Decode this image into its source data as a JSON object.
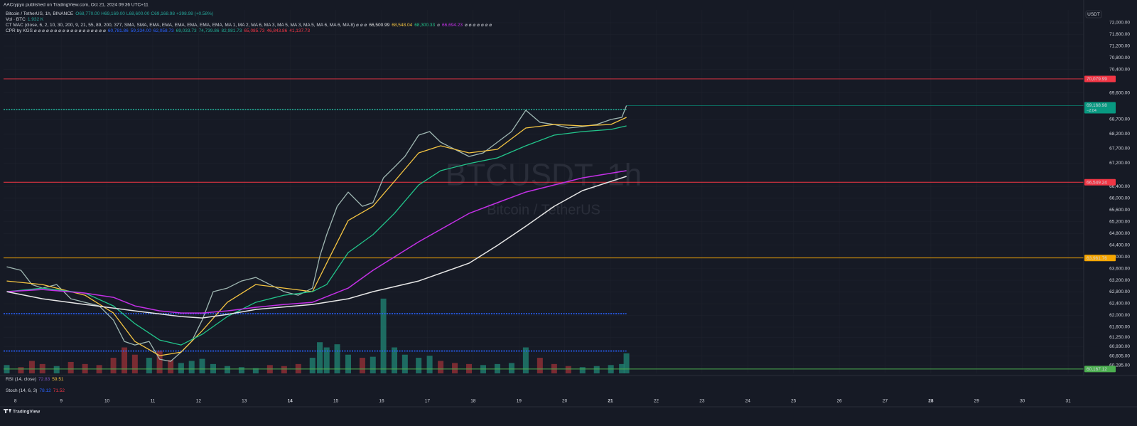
{
  "page": {
    "published": "AACrypyo published on TradingView.com, Oct 21, 2024 09:36 UTC+11",
    "symbol": "Bitcoin / TetherUS, 1h, BINANCE",
    "open": "O68,770.00",
    "high": "H69,169.00",
    "low": "L68,600.00",
    "close": "C69,168.98",
    "change": "+398.98 (+0.58%)",
    "vol_label": "Vol · BTC",
    "vol_value": "1.932 K",
    "mac_label": "CT MAC (close, 6, 2, 10, 30, 200, 9, 21, 55, 89, 200, 377, SMA, SMA, EMA, EMA, EMA, EMA, EMA, EMA, MA 1, MA 2, MA 6, MA 3, MA 5, MA 3, MA 5, MA 6, MA 6, MA 8) ⌀ ⌀ ⌀",
    "mac_values": [
      {
        "text": "66,500.99",
        "color": "#e6e6e6"
      },
      {
        "text": "68,548.04",
        "color": "#f5c542"
      },
      {
        "text": "68,300.33",
        "color": "#22c58b"
      },
      {
        "text": "⌀",
        "color": "#b2b5be"
      },
      {
        "text": "66,694.23",
        "color": "#c330e6"
      }
    ],
    "mac_tail": "⌀ ⌀ ⌀ ⌀ ⌀ ⌀ ⌀",
    "cpr_label": "CPR by KGS ⌀ ⌀ ⌀ ⌀ ⌀ ⌀ ⌀ ⌀ ⌀ ⌀ ⌀ ⌀ ⌀ ⌀ ⌀ ⌀ ⌀ ⌀",
    "cpr_values": [
      {
        "text": "60,781.86",
        "color": "#2962ff"
      },
      {
        "text": "59,334.00",
        "color": "#2962ff"
      },
      {
        "text": "62,058.73",
        "color": "#2962ff"
      },
      {
        "text": "69,033.73",
        "color": "#22ab94"
      },
      {
        "text": "74,739.86",
        "color": "#22ab94"
      },
      {
        "text": "82,981.73",
        "color": "#22ab94"
      },
      {
        "text": "65,085.73",
        "color": "#f23645"
      },
      {
        "text": "46,843.86",
        "color": "#f23645"
      },
      {
        "text": "41,137.73",
        "color": "#f23645"
      }
    ],
    "watermark": "BTCUSDT, 1h",
    "watermark_sub": "Bitcoin / TetherUS",
    "currency": "USDT",
    "rsi_label": "RSI (14, close)",
    "rsi_values": [
      {
        "text": "72.83",
        "color": "#7e57c2"
      },
      {
        "text": "59.51",
        "color": "#f5c542"
      }
    ],
    "stoch_label": "Stoch (14, 6, 3)",
    "stoch_values": [
      {
        "text": "78.12",
        "color": "#2962ff"
      },
      {
        "text": "71.52",
        "color": "#f23645"
      }
    ],
    "brand": "TradingView"
  },
  "chart_data": {
    "type": "line",
    "xlim": [
      7.74,
      31.34
    ],
    "xticks": [
      8,
      9,
      10,
      11,
      12,
      13,
      14,
      15,
      16,
      17,
      18,
      19,
      20,
      21,
      22,
      23,
      24,
      25,
      26,
      27,
      28,
      29,
      30,
      31
    ],
    "xticks_bold": [
      14,
      21,
      28
    ],
    "ylim": [
      60018,
      72437
    ],
    "yticks": [
      {
        "value": 72000,
        "label": "72,000.00"
      },
      {
        "value": 71600,
        "label": "71,600.00"
      },
      {
        "value": 71200,
        "label": "71,200.00"
      },
      {
        "value": 70800,
        "label": "70,800.00"
      },
      {
        "value": 70400,
        "label": "70,400.00"
      },
      {
        "value": 69600,
        "label": "69,600.00"
      },
      {
        "value": 68700,
        "label": "68,700.00"
      },
      {
        "value": 68200,
        "label": "68,200.00"
      },
      {
        "value": 67700,
        "label": "67,700.00"
      },
      {
        "value": 67200,
        "label": "67,200.00"
      },
      {
        "value": 66400,
        "label": "66,400.00"
      },
      {
        "value": 66000,
        "label": "66,000.00"
      },
      {
        "value": 65600,
        "label": "65,600.00"
      },
      {
        "value": 65200,
        "label": "65,200.00"
      },
      {
        "value": 64800,
        "label": "64,800.00"
      },
      {
        "value": 64400,
        "label": "64,400.00"
      },
      {
        "value": 64000,
        "label": "64,000.00"
      },
      {
        "value": 63600,
        "label": "63,600.00"
      },
      {
        "value": 63200,
        "label": "63,200.00"
      },
      {
        "value": 62800,
        "label": "62,800.00"
      },
      {
        "value": 62400,
        "label": "62,400.00"
      },
      {
        "value": 62000,
        "label": "62,000.00"
      },
      {
        "value": 61600,
        "label": "61,600.00"
      },
      {
        "value": 61250,
        "label": "61,250.00"
      },
      {
        "value": 60930,
        "label": "60,930.00"
      },
      {
        "value": 60605,
        "label": "60,605.00"
      },
      {
        "value": 60285,
        "label": "60,285.00"
      }
    ],
    "grid": true,
    "series": [
      {
        "color": "#9fb7b2",
        "width": 1.3,
        "x": [
          7.81,
          8.12,
          8.36,
          8.59,
          8.9,
          9.21,
          9.52,
          9.83,
          10.14,
          10.38,
          10.61,
          10.92,
          11.15,
          11.39,
          11.62,
          11.85,
          12.08,
          12.32,
          12.63,
          12.94,
          13.25,
          13.56,
          13.87,
          14.18,
          14.49,
          14.65,
          14.8,
          15.03,
          15.27,
          15.58,
          15.81,
          16.04,
          16.28,
          16.51,
          16.81,
          17.05,
          17.29,
          17.6,
          17.91,
          18.22,
          18.53,
          18.84,
          19.15,
          19.46,
          19.77,
          20.08,
          20.39,
          20.7,
          21.01,
          21.25,
          21.35
        ],
        "values": [
          63662,
          63540,
          63054,
          62932,
          63054,
          62568,
          62446,
          62325,
          61838,
          61109,
          60988,
          61109,
          60501,
          60428,
          60744,
          61109,
          61838,
          62811,
          62932,
          63175,
          63297,
          63054,
          62811,
          62689,
          62932,
          64026,
          64756,
          65728,
          66214,
          65728,
          65850,
          66700,
          67065,
          67430,
          68159,
          68281,
          67916,
          67673,
          67430,
          67551,
          67916,
          68281,
          69010,
          68597,
          68524,
          68402,
          68451,
          68524,
          68694,
          68767,
          69168.98
        ]
      },
      {
        "color": "#f5c542",
        "width": 1.3,
        "x": [
          7.81,
          8.59,
          9.52,
          10.14,
          10.61,
          11.15,
          11.62,
          12.08,
          12.63,
          13.25,
          13.87,
          14.49,
          14.8,
          15.27,
          15.81,
          16.28,
          16.81,
          17.29,
          17.91,
          18.53,
          19.15,
          19.77,
          20.39,
          21.01,
          21.35
        ],
        "values": [
          63175,
          63054,
          62689,
          62082,
          61109,
          60623,
          60744,
          61474,
          62446,
          63054,
          62932,
          62811,
          63783,
          65242,
          65728,
          66579,
          67551,
          67794,
          67551,
          67673,
          68402,
          68524,
          68475,
          68524,
          68767
        ]
      },
      {
        "color": "#22c58b",
        "width": 1.3,
        "x": [
          7.81,
          8.59,
          9.52,
          10.14,
          10.61,
          11.15,
          11.62,
          12.08,
          12.63,
          13.25,
          13.87,
          14.49,
          14.8,
          15.27,
          15.81,
          16.28,
          16.81,
          17.29,
          17.91,
          18.53,
          19.15,
          19.77,
          20.39,
          21.01,
          21.35
        ],
        "values": [
          62811,
          62932,
          62762,
          62325,
          61717,
          61158,
          60988,
          61352,
          61960,
          62446,
          62689,
          62811,
          63054,
          64148,
          64756,
          65485,
          66457,
          66944,
          67187,
          67381,
          67794,
          68159,
          68281,
          68353,
          68475
        ]
      },
      {
        "color": "#c330e6",
        "width": 1.5,
        "x": [
          7.81,
          8.59,
          9.52,
          10.14,
          10.61,
          11.15,
          11.62,
          12.08,
          12.63,
          13.25,
          13.87,
          14.49,
          15.27,
          15.81,
          16.81,
          17.91,
          18.53,
          19.15,
          19.77,
          20.39,
          21.35
        ],
        "values": [
          62811,
          62884,
          62762,
          62616,
          62325,
          62154,
          62082,
          62082,
          62154,
          62276,
          62373,
          62446,
          62932,
          63540,
          64513,
          65485,
          65850,
          66214,
          66457,
          66700,
          66944
        ]
      },
      {
        "color": "#e6e6e6",
        "width": 1.5,
        "x": [
          7.81,
          8.59,
          9.52,
          10.61,
          11.62,
          12.08,
          12.63,
          13.25,
          14.49,
          15.27,
          15.81,
          16.81,
          17.91,
          18.53,
          19.15,
          19.77,
          20.39,
          21.35
        ],
        "values": [
          62811,
          62568,
          62373,
          62154,
          61960,
          61911,
          62033,
          62203,
          62373,
          62568,
          62811,
          63175,
          63783,
          64391,
          65047,
          65728,
          66263,
          66749
        ]
      }
    ],
    "volume": [
      800,
      600,
      1200,
      900,
      700,
      1100,
      900,
      800,
      1500,
      2500,
      1800,
      1500,
      2200,
      1300,
      1000,
      1200,
      1400,
      900,
      700,
      600,
      500,
      800,
      700,
      900,
      1500,
      3000,
      2500,
      2800,
      1800,
      1500,
      1600,
      7200,
      2500,
      1800,
      1500,
      1700,
      1200,
      1000,
      900,
      800,
      900,
      1000,
      2500,
      1500,
      900,
      700,
      600,
      700,
      800,
      900,
      1932
    ],
    "volume_ylim": [
      0,
      35000
    ],
    "up_color": "#1f7a6c",
    "down_color": "#8c2f35",
    "levels": [
      {
        "value": 70079.99,
        "label": "70,079.99",
        "color": "#f23645"
      },
      {
        "value": 69033.73,
        "color": "#22ab94",
        "dash": true
      },
      {
        "value": 66549.24,
        "label": "66,549.24",
        "color": "#f23645"
      },
      {
        "value": 63961.76,
        "label": "63,961.76",
        "color": "#f7a600"
      },
      {
        "value": 62058.73,
        "color": "#2962ff",
        "dash": true
      },
      {
        "value": 60781.86,
        "color": "#2962ff",
        "dash": true
      },
      {
        "value": 60167.12,
        "label": "60,167.12",
        "color": "#4caf50"
      }
    ],
    "last_price": {
      "label": "69,168.98",
      "countdown": "−2:04",
      "color": "#089981"
    }
  }
}
